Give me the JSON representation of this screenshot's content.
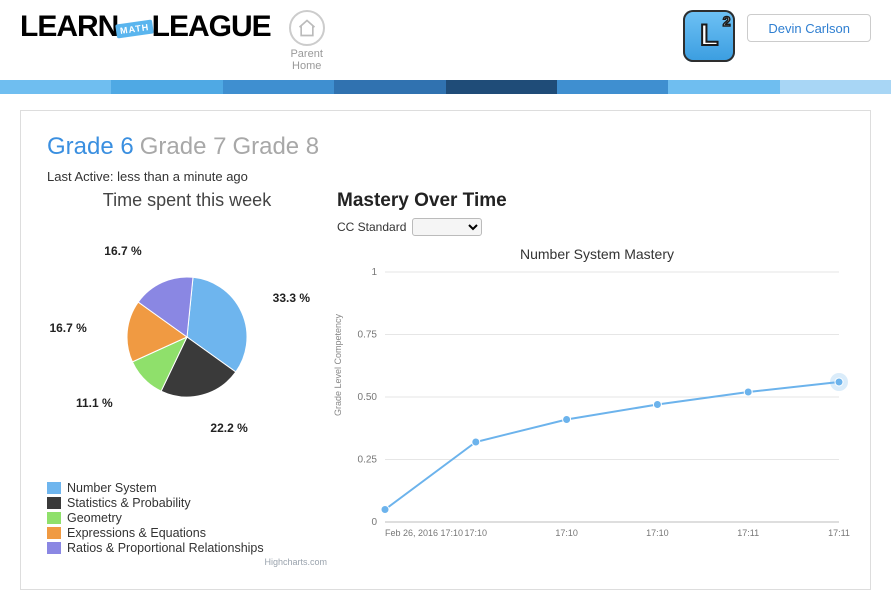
{
  "header": {
    "logo_left": "LEARN",
    "logo_badge": "MATH",
    "logo_right": "LEAGUE",
    "parent_home_label": "Parent\nHome",
    "user_name": "Devin Carlson"
  },
  "strip_colors": [
    "#6fbef0",
    "#4fa9e4",
    "#3f8fd0",
    "#3072b0",
    "#1f4c78",
    "#3f8fd0",
    "#6fbef0",
    "#a8d6f5"
  ],
  "tabs": {
    "items": [
      {
        "label": "Grade 6",
        "active": true
      },
      {
        "label": "Grade 7",
        "active": false
      },
      {
        "label": "Grade 8",
        "active": false
      }
    ]
  },
  "last_active": "Last Active: less than a minute ago",
  "pie": {
    "title": "Time spent this week",
    "type": "pie",
    "background_color": "#ffffff",
    "slice_border_color": "#ffffff",
    "slice_border_width": 1,
    "label_fontsize": 12,
    "label_fontweight": "700",
    "radius": 60,
    "slices": [
      {
        "name": "Number System",
        "pct": 33.3,
        "color": "#6eb5ee"
      },
      {
        "name": "Statistics & Probability",
        "pct": 22.2,
        "color": "#3a3a3a"
      },
      {
        "name": "Geometry",
        "pct": 11.1,
        "color": "#8fe06b"
      },
      {
        "name": "Expressions & Equations",
        "pct": 16.7,
        "color": "#f09a42"
      },
      {
        "name": "Ratios & Proportional Relationships",
        "pct": 16.7,
        "color": "#8a87e3"
      }
    ],
    "attribution": "Highcharts.com"
  },
  "legend_order": [
    0,
    1,
    2,
    3,
    4
  ],
  "mastery": {
    "heading": "Mastery Over Time",
    "dropdown_label": "CC Standard",
    "chart": {
      "type": "line",
      "title": "Number System Mastery",
      "title_fontsize": 14,
      "ylabel": "Grade Level Competency",
      "label_fontsize": 9,
      "ylim": [
        0,
        1
      ],
      "ytick_step": 0.25,
      "grid_color": "#e6e6e6",
      "background_color": "#ffffff",
      "line_color": "#6cb3ec",
      "line_width": 2,
      "marker_color": "#6cb3ec",
      "marker_radius": 4,
      "halo_point_index": 5,
      "x_labels": [
        "Feb 26, 2016 17:10",
        "17:10",
        "17:10",
        "17:10",
        "17:11",
        "17:11"
      ],
      "y_values": [
        0.05,
        0.32,
        0.41,
        0.47,
        0.52,
        0.56
      ]
    }
  }
}
